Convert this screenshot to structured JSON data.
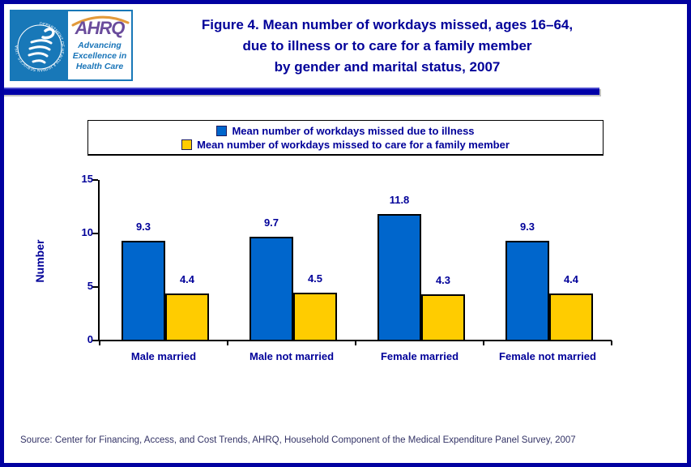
{
  "header": {
    "logo": {
      "hhs_seal_text": "DEPARTMENT OF HEALTH & HUMAN SERVICES · USA",
      "ahrq_acronym": "AHRQ",
      "tagline_lines": [
        "Advancing",
        "Excellence in",
        "Health Care"
      ]
    },
    "title_lines": [
      "Figure 4. Mean number of workdays missed, ages 16–64,",
      "due to illness or to care for a family member",
      "by gender and marital status, 2007"
    ],
    "title_color": "#000099"
  },
  "legend": {
    "items": [
      {
        "label": "Mean number of workdays missed due to illness",
        "color": "#0066CC"
      },
      {
        "label": "Mean number of workdays missed to care for a family member",
        "color": "#FFCC00"
      }
    ]
  },
  "chart_data": {
    "type": "bar",
    "categories": [
      "Male married",
      "Male not married",
      "Female married",
      "Female not married"
    ],
    "series": [
      {
        "name": "Mean number of workdays missed due to illness",
        "color": "#0066CC",
        "values": [
          9.3,
          9.7,
          11.8,
          9.3
        ]
      },
      {
        "name": "Mean number of workdays missed to care for a family member",
        "color": "#FFCC00",
        "values": [
          4.4,
          4.5,
          4.3,
          4.4
        ]
      }
    ],
    "title": "Figure 4. Mean number of workdays missed, ages 16–64, due to illness or to care for a family member by gender and marital status, 2007",
    "xlabel": "",
    "ylabel": "Number",
    "yticks": [
      0,
      5,
      10,
      15
    ],
    "ylim": [
      0,
      15
    ],
    "grid": false,
    "legend_position": "top",
    "bar_border_color": "#000000"
  },
  "footer": {
    "source": "Source: Center for Financing, Access, and Cost Trends, AHRQ, Household Component of the Medical Expenditure Panel Survey, 2007"
  }
}
